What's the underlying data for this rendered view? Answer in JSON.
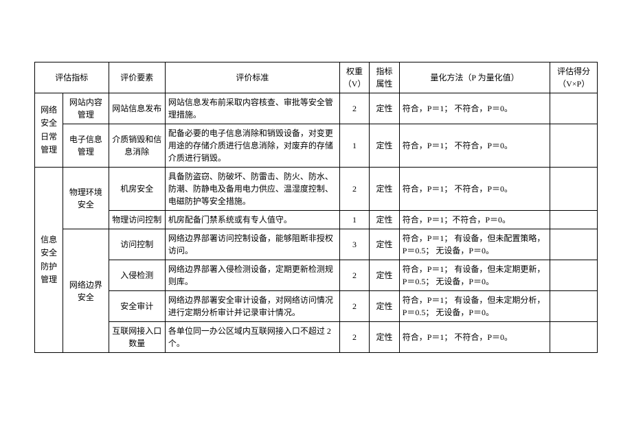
{
  "columns": {
    "c1": "评估指标",
    "c2": "评价要素",
    "c3": "评价标准",
    "c4": "权重（V）",
    "c5": "指标属性",
    "c6": "量化方法（P 为量化值）",
    "c7": "评估得分（V×P）"
  },
  "g1": {
    "title": "网络安全日常管理",
    "subs": {
      "s1": {
        "title": "网站内容管理"
      },
      "s2": {
        "title": "电子信息管理"
      }
    },
    "rows": {
      "r1": {
        "elem": "网站信息发布",
        "std": "网站信息发布前采取内容核查、审批等安全管理措施。",
        "weight": "2",
        "attr": "定性",
        "quant": "符合，P＝1；\n不符合，P＝0。",
        "score": ""
      },
      "r2": {
        "elem": "介质销毁和信息消除",
        "std": "配备必要的电子信息消除和销毁设备，对变更用途的存储介质进行信息消除，对废弃的存储介质进行销毁。",
        "weight": "1",
        "attr": "定性",
        "quant": "符合，P＝1；\n不符合，P＝0。",
        "score": ""
      }
    }
  },
  "g2": {
    "title": "信息安全防护管理",
    "subs": {
      "s1": {
        "title": "物理环境安全"
      },
      "s2": {
        "title": "网络边界安全"
      }
    },
    "rows": {
      "r1": {
        "elem": "机房安全",
        "std": "具备防盗窃、防破坏、防雷击、防火、防水、防潮、防静电及备用电力供应、温湿度控制、电磁防护等安全措施。",
        "weight": "2",
        "attr": "定性",
        "quant": "符合，P＝1；\n不符合，P＝0。",
        "score": ""
      },
      "r2": {
        "elem": "物理访问控制",
        "std": "机房配备门禁系统或有专人值守。",
        "weight": "1",
        "attr": "定性",
        "quant": "符合，P＝1；不符合，P＝0。",
        "score": ""
      },
      "r3": {
        "elem": "访问控制",
        "std": "网络边界部署访问控制设备，能够阻断非授权访问。",
        "weight": "3",
        "attr": "定性",
        "quant": "符合，P＝1；\n有设备，但未配置策略，P＝0.5；\n无设备，P＝0。",
        "score": ""
      },
      "r4": {
        "elem": "入侵检测",
        "std": "网络边界部署入侵检测设备，定期更新检测规则库。",
        "weight": "2",
        "attr": "定性",
        "quant": "符合，P＝1；\n有设备，但未定期更新，P＝0.5；\n无设备，P＝0。",
        "score": ""
      },
      "r5": {
        "elem": "安全审计",
        "std": "网络边界部署安全审计设备，对网络访问情况进行定期分析审计并记录审计情况。",
        "weight": "2",
        "attr": "定性",
        "quant": "符合，P＝1；\n有设备，但未定期分析，P＝0.5；\n无设备，P＝0。",
        "score": ""
      },
      "r6": {
        "elem": "互联网接入口数量",
        "std": "各单位同一办公区域内互联网接入口不超过 2 个。",
        "weight": "2",
        "attr": "定性",
        "quant": "符合，P＝1；\n不符合，P＝0。",
        "score": ""
      }
    }
  }
}
